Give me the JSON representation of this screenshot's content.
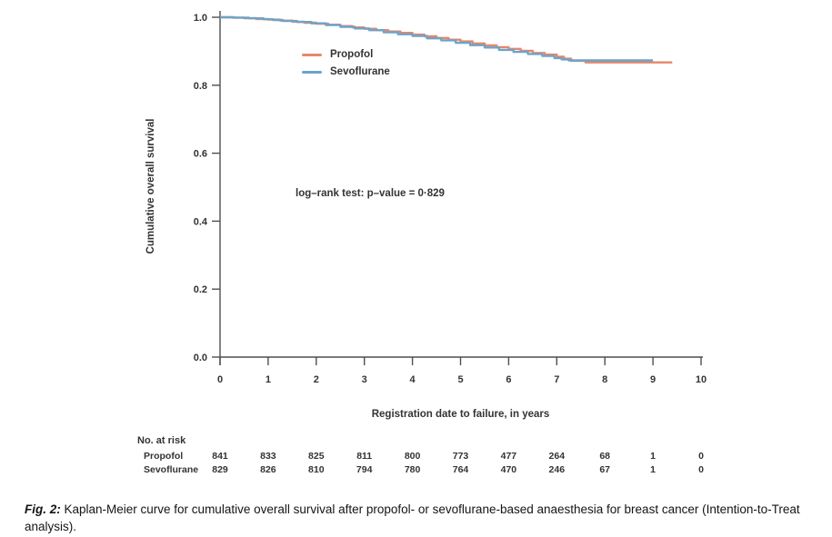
{
  "figure": {
    "caption_label": "Fig. 2:",
    "caption_text": " Kaplan-Meier curve for cumulative overall survival after propofol- or sevoflurane-based anaesthesia for breast cancer (Intention-to-Treat analysis)."
  },
  "chart_data": {
    "type": "line",
    "variant": "kaplan-meier-step-curve",
    "title": "",
    "xlabel": "Registration date to failure, in years",
    "ylabel": "Cumulative overall survival",
    "annotation": "log–rank test: p–value = 0·829",
    "xlim": [
      0,
      10
    ],
    "ylim": [
      0.0,
      1.0
    ],
    "xticks": [
      0,
      1,
      2,
      3,
      4,
      5,
      6,
      7,
      8,
      9,
      10
    ],
    "yticks": [
      "0.0",
      "0.2",
      "0.4",
      "0.6",
      "0.8",
      "1.0"
    ],
    "grid": false,
    "legend_position": "upper-left-inside",
    "legend": [
      {
        "name": "Propofol",
        "color": "#E8866B"
      },
      {
        "name": "Sevoflurane",
        "color": "#6DA4C8"
      }
    ],
    "series": [
      {
        "name": "Propofol",
        "color": "#E8866B",
        "points": [
          [
            0,
            1.0
          ],
          [
            0.25,
            0.999
          ],
          [
            0.5,
            0.997
          ],
          [
            0.75,
            0.995
          ],
          [
            1.0,
            0.993
          ],
          [
            1.25,
            0.99
          ],
          [
            1.5,
            0.987
          ],
          [
            1.75,
            0.984
          ],
          [
            2.0,
            0.981
          ],
          [
            2.25,
            0.978
          ],
          [
            2.5,
            0.974
          ],
          [
            2.75,
            0.97
          ],
          [
            3.0,
            0.966
          ],
          [
            3.25,
            0.962
          ],
          [
            3.5,
            0.958
          ],
          [
            3.75,
            0.954
          ],
          [
            4.0,
            0.949
          ],
          [
            4.25,
            0.944
          ],
          [
            4.5,
            0.939
          ],
          [
            4.75,
            0.934
          ],
          [
            5.0,
            0.929
          ],
          [
            5.25,
            0.923
          ],
          [
            5.5,
            0.917
          ],
          [
            5.75,
            0.912
          ],
          [
            6.0,
            0.907
          ],
          [
            6.25,
            0.901
          ],
          [
            6.5,
            0.895
          ],
          [
            6.75,
            0.89
          ],
          [
            7.0,
            0.884
          ],
          [
            7.15,
            0.878
          ],
          [
            7.3,
            0.872
          ],
          [
            7.6,
            0.867
          ],
          [
            9.4,
            0.867
          ]
        ]
      },
      {
        "name": "Sevoflurane",
        "color": "#6DA4C8",
        "points": [
          [
            0,
            1.0
          ],
          [
            0.3,
            0.999
          ],
          [
            0.6,
            0.997
          ],
          [
            0.9,
            0.994
          ],
          [
            1.1,
            0.992
          ],
          [
            1.3,
            0.989
          ],
          [
            1.6,
            0.986
          ],
          [
            1.9,
            0.982
          ],
          [
            2.2,
            0.977
          ],
          [
            2.5,
            0.972
          ],
          [
            2.8,
            0.967
          ],
          [
            3.1,
            0.962
          ],
          [
            3.4,
            0.956
          ],
          [
            3.7,
            0.95
          ],
          [
            4.0,
            0.945
          ],
          [
            4.3,
            0.938
          ],
          [
            4.6,
            0.932
          ],
          [
            4.9,
            0.925
          ],
          [
            5.2,
            0.918
          ],
          [
            5.5,
            0.911
          ],
          [
            5.8,
            0.904
          ],
          [
            6.1,
            0.898
          ],
          [
            6.4,
            0.892
          ],
          [
            6.7,
            0.886
          ],
          [
            6.95,
            0.88
          ],
          [
            7.1,
            0.876
          ],
          [
            7.25,
            0.873
          ],
          [
            9.0,
            0.873
          ]
        ]
      }
    ],
    "risk_table": {
      "header": "No. at risk",
      "times": [
        0,
        1,
        2,
        3,
        4,
        5,
        6,
        7,
        8,
        9,
        10
      ],
      "rows": [
        {
          "label": "Propofol",
          "values": [
            841,
            833,
            825,
            811,
            800,
            773,
            477,
            264,
            68,
            1,
            0
          ]
        },
        {
          "label": "Sevoflurane",
          "values": [
            829,
            826,
            810,
            794,
            780,
            764,
            470,
            246,
            67,
            1,
            0
          ]
        }
      ]
    }
  }
}
